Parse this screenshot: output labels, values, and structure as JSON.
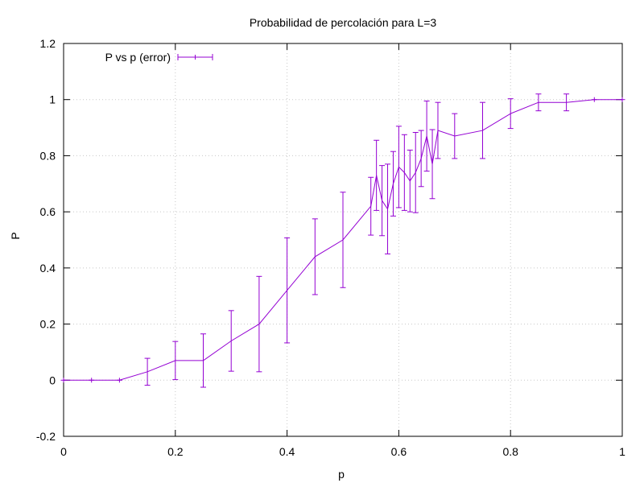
{
  "chart_data": {
    "type": "line",
    "title": "Probabilidad de percolación para L=3",
    "xlabel": "p",
    "ylabel": "P",
    "xlim": [
      0,
      1
    ],
    "ylim": [
      -0.2,
      1.2
    ],
    "xticks": [
      "0",
      "0.2",
      "0.4",
      "0.6",
      "0.8",
      "1"
    ],
    "yticks": [
      "-0.2",
      "0",
      "0.2",
      "0.4",
      "0.6",
      "0.8",
      "1",
      "1.2"
    ],
    "grid": true,
    "legend_position": "top-left",
    "series": [
      {
        "name": "P vs p (error)",
        "color": "#9400d3",
        "style": "line-errorbars",
        "points": [
          {
            "x": 0.0,
            "y": 0.0,
            "err": 0.0
          },
          {
            "x": 0.05,
            "y": 0.0,
            "err": 0.0
          },
          {
            "x": 0.1,
            "y": 0.0,
            "err": 0.0
          },
          {
            "x": 0.15,
            "y": 0.03,
            "err": 0.048
          },
          {
            "x": 0.2,
            "y": 0.07,
            "err": 0.068
          },
          {
            "x": 0.25,
            "y": 0.07,
            "err": 0.095
          },
          {
            "x": 0.3,
            "y": 0.14,
            "err": 0.108
          },
          {
            "x": 0.35,
            "y": 0.2,
            "err": 0.17
          },
          {
            "x": 0.4,
            "y": 0.32,
            "err": 0.187
          },
          {
            "x": 0.45,
            "y": 0.44,
            "err": 0.135
          },
          {
            "x": 0.5,
            "y": 0.5,
            "err": 0.17
          },
          {
            "x": 0.55,
            "y": 0.62,
            "err": 0.103
          },
          {
            "x": 0.56,
            "y": 0.73,
            "err": 0.125
          },
          {
            "x": 0.57,
            "y": 0.64,
            "err": 0.125
          },
          {
            "x": 0.58,
            "y": 0.61,
            "err": 0.16
          },
          {
            "x": 0.59,
            "y": 0.7,
            "err": 0.115
          },
          {
            "x": 0.6,
            "y": 0.76,
            "err": 0.145
          },
          {
            "x": 0.61,
            "y": 0.74,
            "err": 0.135
          },
          {
            "x": 0.62,
            "y": 0.71,
            "err": 0.11
          },
          {
            "x": 0.63,
            "y": 0.74,
            "err": 0.143
          },
          {
            "x": 0.64,
            "y": 0.79,
            "err": 0.1
          },
          {
            "x": 0.65,
            "y": 0.87,
            "err": 0.125
          },
          {
            "x": 0.66,
            "y": 0.77,
            "err": 0.123
          },
          {
            "x": 0.67,
            "y": 0.89,
            "err": 0.1
          },
          {
            "x": 0.7,
            "y": 0.87,
            "err": 0.08
          },
          {
            "x": 0.75,
            "y": 0.89,
            "err": 0.1
          },
          {
            "x": 0.8,
            "y": 0.95,
            "err": 0.053
          },
          {
            "x": 0.85,
            "y": 0.99,
            "err": 0.03
          },
          {
            "x": 0.9,
            "y": 0.99,
            "err": 0.03
          },
          {
            "x": 0.95,
            "y": 1.0,
            "err": 0.0
          },
          {
            "x": 1.0,
            "y": 1.0,
            "err": 0.0
          }
        ]
      }
    ]
  }
}
